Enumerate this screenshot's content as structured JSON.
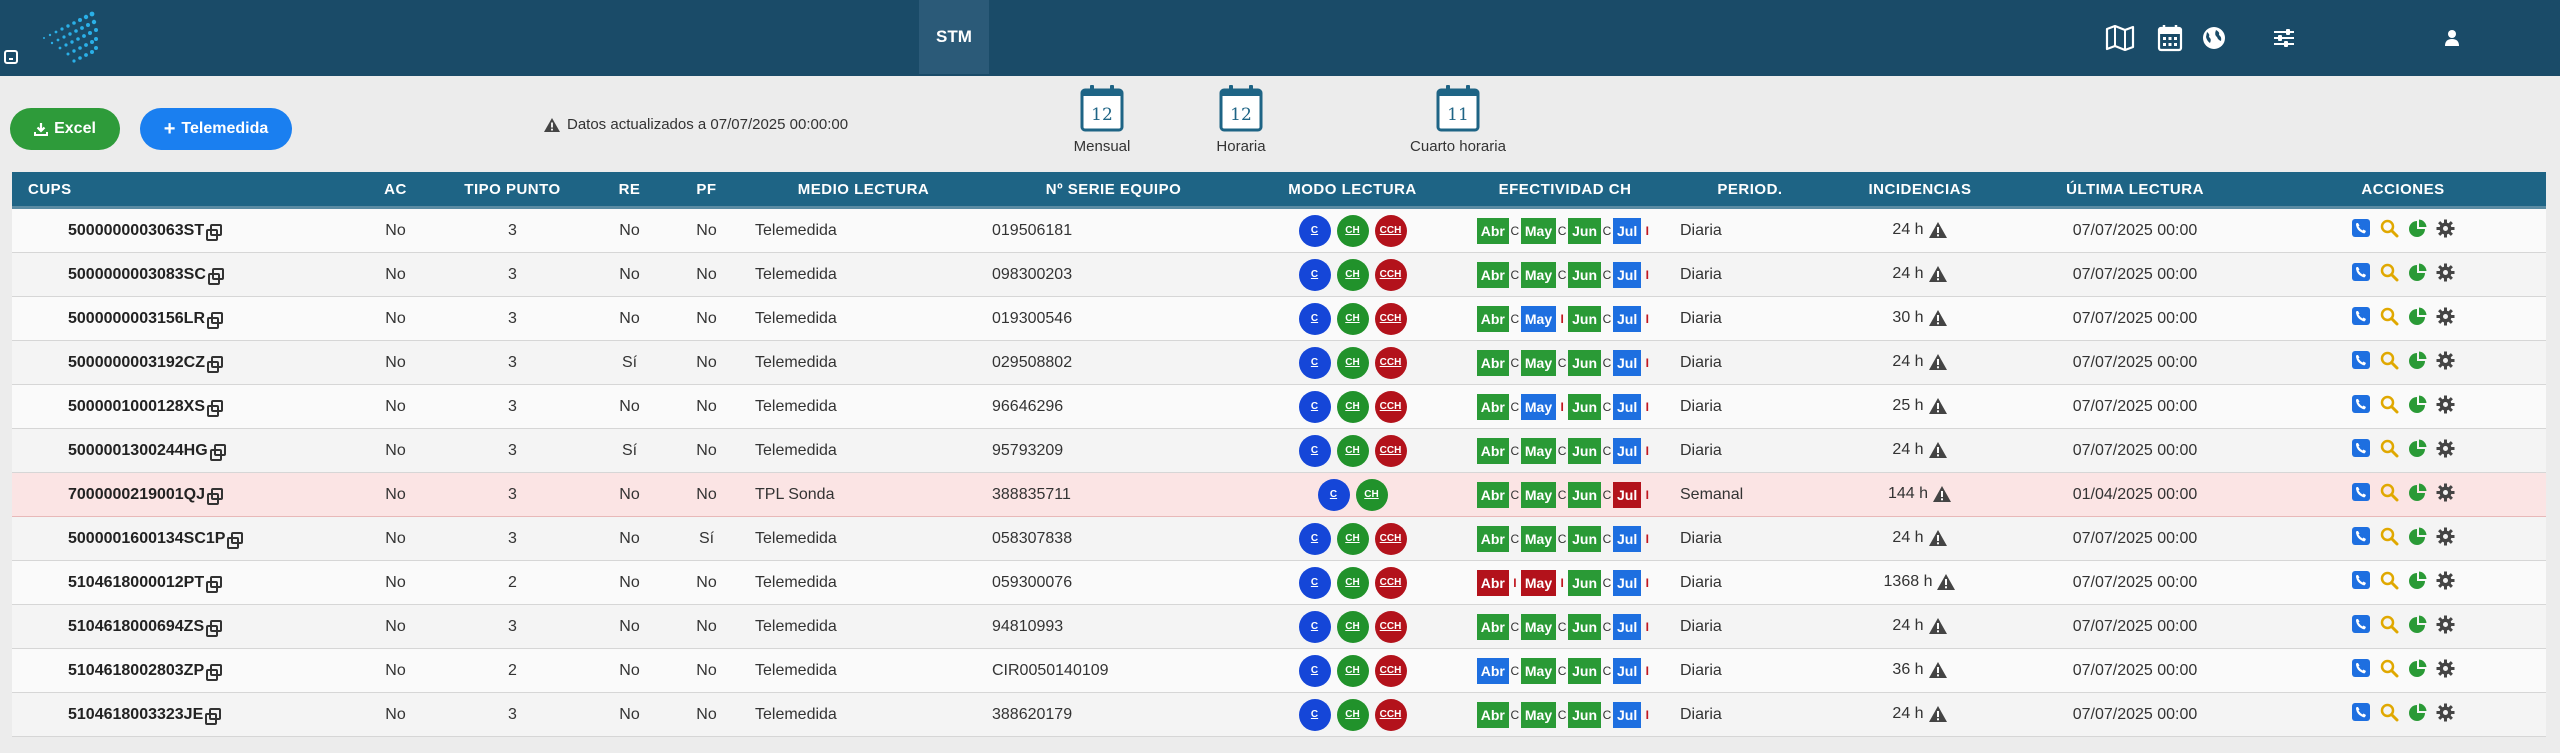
{
  "nav": {
    "active_tab": "STM",
    "icons": [
      "map-icon",
      "calendar-icon",
      "globe-icon",
      "sliders-icon",
      "user-icon"
    ]
  },
  "toolbar": {
    "excel_label": "Excel",
    "telemedida_label": "Telemedida",
    "update_text": "Datos actualizados a 07/07/2025 00:00:00",
    "calendars": [
      {
        "number": "12",
        "label": "Mensual"
      },
      {
        "number": "12",
        "label": "Horaria"
      },
      {
        "number": "11",
        "label": "Cuarto horaria"
      }
    ]
  },
  "table": {
    "headers": [
      "CUPS",
      "AC",
      "TIPO PUNTO",
      "RE",
      "PF",
      "MEDIO LECTURA",
      "Nº SERIE EQUIPO",
      "MODO LECTURA",
      "EFECTIVIDAD CH",
      "PERIOD.",
      "INCIDENCIAS",
      "ÚLTIMA LECTURA",
      "ACCIONES"
    ],
    "rows": [
      {
        "cups": "5000000003063ST",
        "ac": "No",
        "tipo": "3",
        "re": "No",
        "pf": "No",
        "medio": "Telemedida",
        "serie": "019506181",
        "modos": [
          "C",
          "CH",
          "CCH"
        ],
        "ef": [
          [
            "Abr",
            "g"
          ],
          [
            "May",
            "g"
          ],
          [
            "Jun",
            "g"
          ],
          [
            "Jul",
            "b"
          ]
        ],
        "seps": [
          "C",
          "C",
          "C",
          "I"
        ],
        "period": "Diaria",
        "inc": "24 h",
        "ultima": "07/07/2025 00:00",
        "alert": false
      },
      {
        "cups": "5000000003083SC",
        "ac": "No",
        "tipo": "3",
        "re": "No",
        "pf": "No",
        "medio": "Telemedida",
        "serie": "098300203",
        "modos": [
          "C",
          "CH",
          "CCH"
        ],
        "ef": [
          [
            "Abr",
            "g"
          ],
          [
            "May",
            "g"
          ],
          [
            "Jun",
            "g"
          ],
          [
            "Jul",
            "b"
          ]
        ],
        "seps": [
          "C",
          "C",
          "C",
          "I"
        ],
        "period": "Diaria",
        "inc": "24 h",
        "ultima": "07/07/2025 00:00",
        "alert": false
      },
      {
        "cups": "5000000003156LR",
        "ac": "No",
        "tipo": "3",
        "re": "No",
        "pf": "No",
        "medio": "Telemedida",
        "serie": "019300546",
        "modos": [
          "C",
          "CH",
          "CCH"
        ],
        "ef": [
          [
            "Abr",
            "g"
          ],
          [
            "May",
            "b"
          ],
          [
            "Jun",
            "g"
          ],
          [
            "Jul",
            "b"
          ]
        ],
        "seps": [
          "C",
          "I",
          "C",
          "I"
        ],
        "period": "Diaria",
        "inc": "30 h",
        "ultima": "07/07/2025 00:00",
        "alert": false
      },
      {
        "cups": "5000000003192CZ",
        "ac": "No",
        "tipo": "3",
        "re": "Sí",
        "pf": "No",
        "medio": "Telemedida",
        "serie": "029508802",
        "modos": [
          "C",
          "CH",
          "CCH"
        ],
        "ef": [
          [
            "Abr",
            "g"
          ],
          [
            "May",
            "g"
          ],
          [
            "Jun",
            "g"
          ],
          [
            "Jul",
            "b"
          ]
        ],
        "seps": [
          "C",
          "C",
          "C",
          "I"
        ],
        "period": "Diaria",
        "inc": "24 h",
        "ultima": "07/07/2025 00:00",
        "alert": false
      },
      {
        "cups": "5000001000128XS",
        "ac": "No",
        "tipo": "3",
        "re": "No",
        "pf": "No",
        "medio": "Telemedida",
        "serie": "96646296",
        "modos": [
          "C",
          "CH",
          "CCH"
        ],
        "ef": [
          [
            "Abr",
            "g"
          ],
          [
            "May",
            "b"
          ],
          [
            "Jun",
            "g"
          ],
          [
            "Jul",
            "b"
          ]
        ],
        "seps": [
          "C",
          "I",
          "C",
          "I"
        ],
        "period": "Diaria",
        "inc": "25 h",
        "ultima": "07/07/2025 00:00",
        "alert": false
      },
      {
        "cups": "5000001300244HG",
        "ac": "No",
        "tipo": "3",
        "re": "Sí",
        "pf": "No",
        "medio": "Telemedida",
        "serie": "95793209",
        "modos": [
          "C",
          "CH",
          "CCH"
        ],
        "ef": [
          [
            "Abr",
            "g"
          ],
          [
            "May",
            "g"
          ],
          [
            "Jun",
            "g"
          ],
          [
            "Jul",
            "b"
          ]
        ],
        "seps": [
          "C",
          "C",
          "C",
          "I"
        ],
        "period": "Diaria",
        "inc": "24 h",
        "ultima": "07/07/2025 00:00",
        "alert": false
      },
      {
        "cups": "7000000219001QJ",
        "ac": "No",
        "tipo": "3",
        "re": "No",
        "pf": "No",
        "medio": "TPL Sonda",
        "serie": "388835711",
        "modos": [
          "C",
          "CH"
        ],
        "ef": [
          [
            "Abr",
            "g"
          ],
          [
            "May",
            "g"
          ],
          [
            "Jun",
            "g"
          ],
          [
            "Jul",
            "r"
          ]
        ],
        "seps": [
          "C",
          "C",
          "C",
          "I"
        ],
        "period": "Semanal",
        "inc": "144 h",
        "ultima": "01/04/2025 00:00",
        "alert": true
      },
      {
        "cups": "5000001600134SC1P",
        "ac": "No",
        "tipo": "3",
        "re": "No",
        "pf": "Sí",
        "medio": "Telemedida",
        "serie": "058307838",
        "modos": [
          "C",
          "CH",
          "CCH"
        ],
        "ef": [
          [
            "Abr",
            "g"
          ],
          [
            "May",
            "g"
          ],
          [
            "Jun",
            "g"
          ],
          [
            "Jul",
            "b"
          ]
        ],
        "seps": [
          "C",
          "C",
          "C",
          "I"
        ],
        "period": "Diaria",
        "inc": "24 h",
        "ultima": "07/07/2025 00:00",
        "alert": false
      },
      {
        "cups": "5104618000012PT",
        "ac": "No",
        "tipo": "2",
        "re": "No",
        "pf": "No",
        "medio": "Telemedida",
        "serie": "059300076",
        "modos": [
          "C",
          "CH",
          "CCH"
        ],
        "ef": [
          [
            "Abr",
            "r"
          ],
          [
            "May",
            "r"
          ],
          [
            "Jun",
            "g"
          ],
          [
            "Jul",
            "b"
          ]
        ],
        "seps": [
          "I",
          "I",
          "C",
          "I"
        ],
        "period": "Diaria",
        "inc": "1368 h",
        "ultima": "07/07/2025 00:00",
        "alert": false
      },
      {
        "cups": "5104618000694ZS",
        "ac": "No",
        "tipo": "3",
        "re": "No",
        "pf": "No",
        "medio": "Telemedida",
        "serie": "94810993",
        "modos": [
          "C",
          "CH",
          "CCH"
        ],
        "ef": [
          [
            "Abr",
            "g"
          ],
          [
            "May",
            "g"
          ],
          [
            "Jun",
            "g"
          ],
          [
            "Jul",
            "b"
          ]
        ],
        "seps": [
          "C",
          "C",
          "C",
          "I"
        ],
        "period": "Diaria",
        "inc": "24 h",
        "ultima": "07/07/2025 00:00",
        "alert": false
      },
      {
        "cups": "5104618002803ZP",
        "ac": "No",
        "tipo": "2",
        "re": "No",
        "pf": "No",
        "medio": "Telemedida",
        "serie": "CIR0050140109",
        "modos": [
          "C",
          "CH",
          "CCH"
        ],
        "ef": [
          [
            "Abr",
            "b"
          ],
          [
            "May",
            "g"
          ],
          [
            "Jun",
            "g"
          ],
          [
            "Jul",
            "b"
          ]
        ],
        "seps": [
          "C",
          "C",
          "C",
          "I"
        ],
        "period": "Diaria",
        "inc": "36 h",
        "ultima": "07/07/2025 00:00",
        "alert": false
      },
      {
        "cups": "5104618003323JE",
        "ac": "No",
        "tipo": "3",
        "re": "No",
        "pf": "No",
        "medio": "Telemedida",
        "serie": "388620179",
        "modos": [
          "C",
          "CH",
          "CCH"
        ],
        "ef": [
          [
            "Abr",
            "g"
          ],
          [
            "May",
            "g"
          ],
          [
            "Jun",
            "g"
          ],
          [
            "Jul",
            "b"
          ]
        ],
        "seps": [
          "C",
          "C",
          "C",
          "I"
        ],
        "period": "Diaria",
        "inc": "24 h",
        "ultima": "07/07/2025 00:00",
        "alert": false
      }
    ]
  },
  "colors": {
    "header_bg": "#1a4b68",
    "table_header": "#1e6485",
    "green": "#2a9a36",
    "blue": "#1e6fe0",
    "red": "#b3121b",
    "mode_blue": "#1546d8"
  }
}
